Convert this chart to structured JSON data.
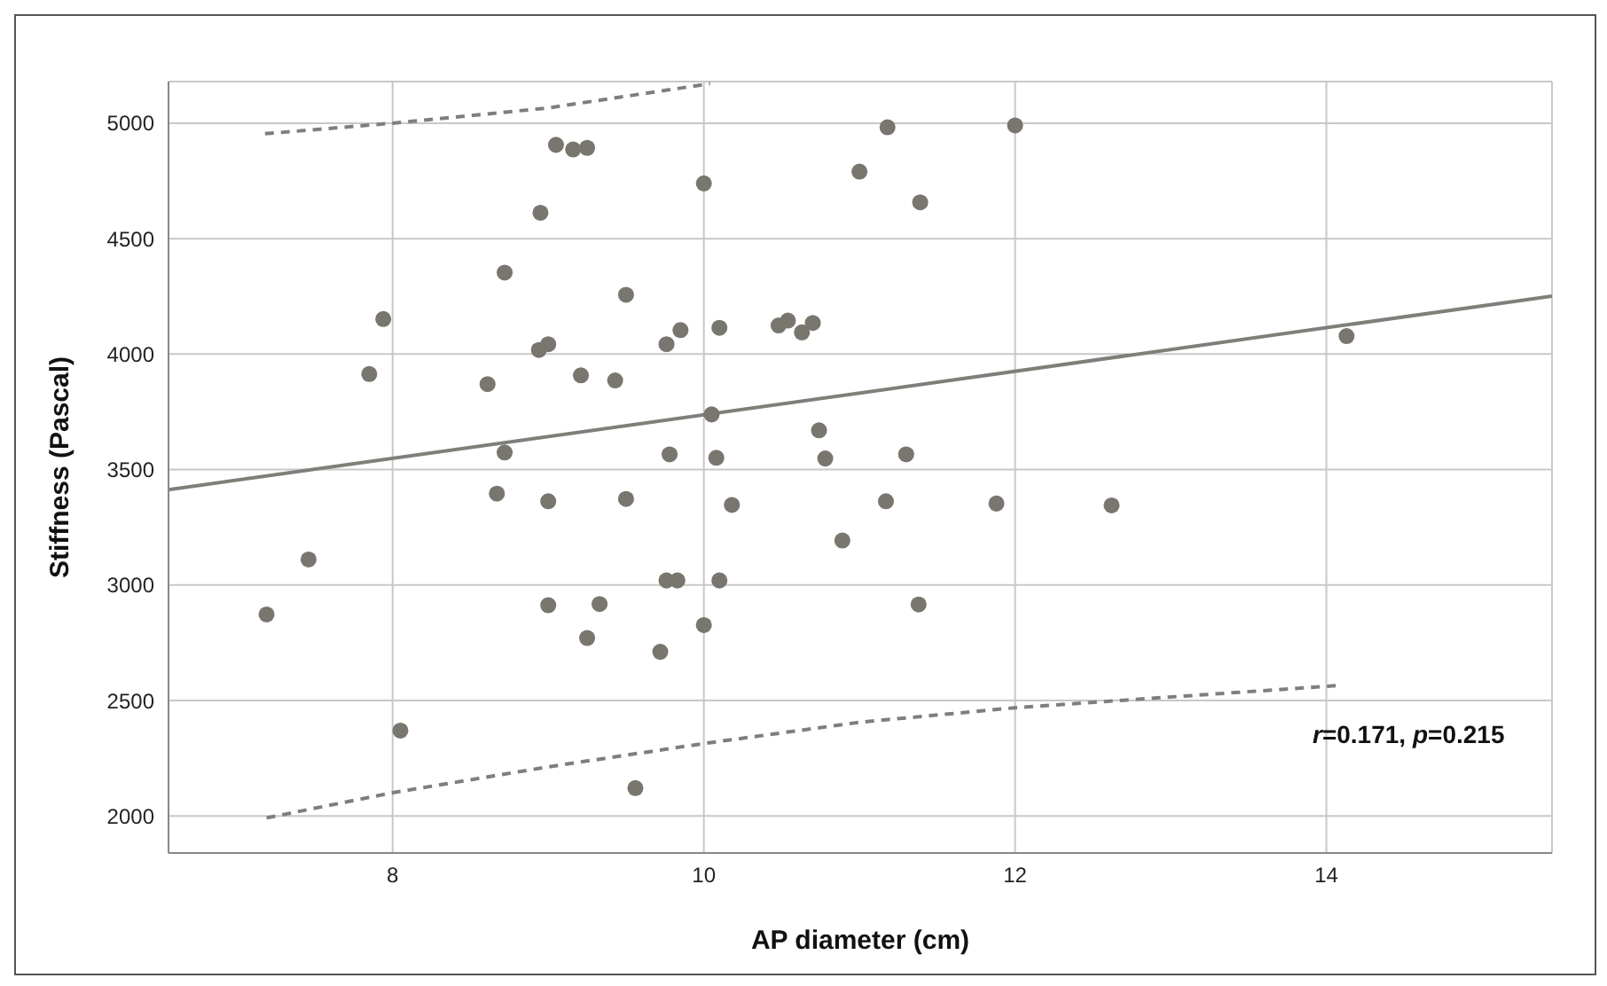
{
  "chart_data": {
    "type": "scatter",
    "xlabel": "AP diameter (cm)",
    "ylabel": "Stiffness (Pascal)",
    "xlim": [
      6.56,
      15.45
    ],
    "ylim": [
      1840,
      5180
    ],
    "xticks": [
      8,
      10,
      12,
      14
    ],
    "yticks": [
      2000,
      2500,
      3000,
      3500,
      4000,
      4500,
      5000
    ],
    "grid": true,
    "annotations": [
      "r=0.171, p=0.215"
    ],
    "series": [
      {
        "marker": "circle",
        "color": "#79756f",
        "x": [
          9.05,
          9.16,
          9.25,
          8.95,
          10.0,
          11.0,
          8.72,
          9.5,
          7.94,
          7.85,
          8.94,
          9.0,
          9.76,
          9.85,
          10.1,
          10.48,
          10.54,
          10.63,
          10.7,
          8.61,
          9.21,
          9.43,
          10.05,
          10.74,
          8.72,
          9.78,
          10.08,
          10.78,
          11.18,
          12.0,
          11.39,
          14.13,
          11.3,
          8.67,
          9.0,
          9.5,
          10.18,
          10.89,
          7.46,
          7.19,
          9.76,
          9.83,
          10.1,
          9.0,
          9.33,
          9.25,
          9.72,
          10.0,
          8.05,
          9.56,
          11.17,
          11.88,
          12.62,
          11.38
        ],
        "values": [
          4906,
          4886,
          4893,
          4612,
          4739,
          4790,
          4353,
          4257,
          4152,
          3914,
          4018,
          4043,
          4043,
          4104,
          4114,
          4124,
          4145,
          4094,
          4135,
          3870,
          3908,
          3886,
          3739,
          3670,
          3574,
          3566,
          3551,
          3548,
          4982,
          4990,
          4657,
          4078,
          3566,
          3396,
          3363,
          3373,
          3347,
          3193,
          3111,
          2873,
          3020,
          3020,
          3020,
          2913,
          2918,
          2771,
          2711,
          2827,
          2370,
          2121,
          3363,
          3353,
          3345,
          2916
        ]
      },
      {
        "type": "line",
        "marker": "none",
        "color": "#7f7f7a",
        "line_style": "solid",
        "x": [
          6.56,
          15.45
        ],
        "values": [
          3413,
          4251
        ]
      },
      {
        "type": "line",
        "marker": "none",
        "color": "#7f7f7a",
        "line_style": "dashed",
        "x": [
          7.18,
          8,
          9,
          10.04
        ],
        "values": [
          4954,
          5000,
          5066,
          5171
        ]
      },
      {
        "type": "line",
        "marker": "none",
        "color": "#7f7f7a",
        "line_style": "dashed",
        "x": [
          7.19,
          8,
          9,
          10,
          11,
          12,
          14.09
        ],
        "values": [
          1992,
          2101,
          2213,
          2314,
          2406,
          2469,
          2566
        ]
      }
    ]
  }
}
